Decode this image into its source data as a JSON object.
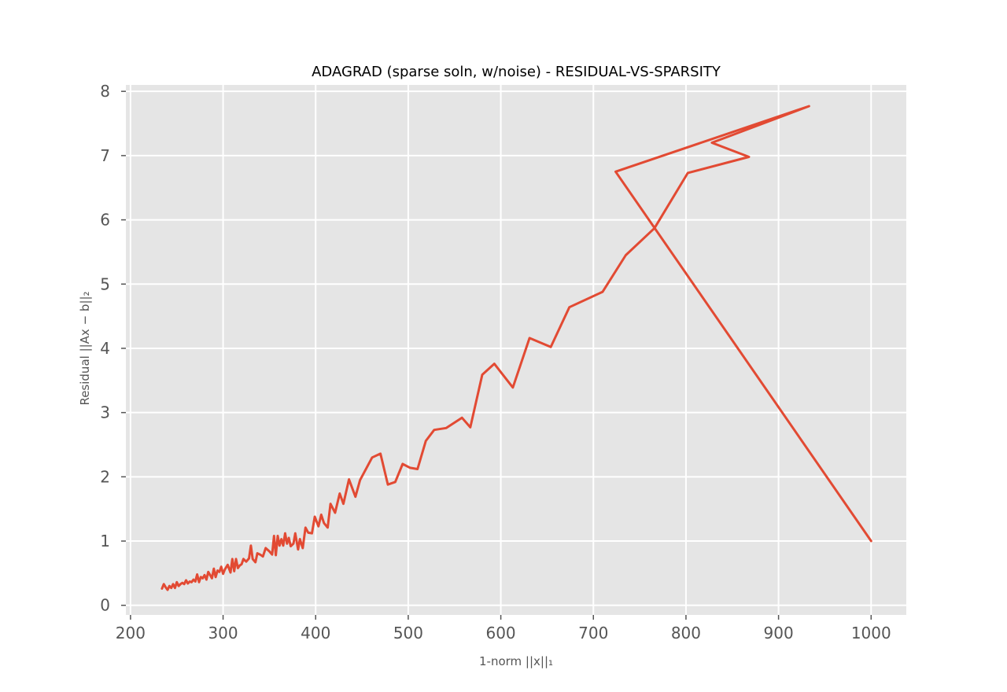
{
  "chart_data": {
    "type": "line",
    "title": "ADAGRAD (sparse soln, w/noise) - RESIDUAL-VS-SPARSITY",
    "xlabel": "1-norm ||x||₁",
    "ylabel": "Residual ||Ax − b||₂",
    "xlim": [
      195,
      1038
    ],
    "ylim": [
      -0.15,
      8.1
    ],
    "xticks": [
      200,
      300,
      400,
      500,
      600,
      700,
      800,
      900,
      1000
    ],
    "yticks": [
      0,
      1,
      2,
      3,
      4,
      5,
      6,
      7,
      8
    ],
    "grid": true,
    "style": "ggplot",
    "series": [
      {
        "color": "#E24A33",
        "x": [
          1000,
          724,
          933,
          828,
          868,
          802,
          766,
          735,
          710,
          674,
          654,
          631,
          613,
          593,
          580,
          567,
          558,
          541,
          528,
          519,
          510,
          502,
          494,
          486,
          478,
          470,
          461,
          448,
          443,
          436,
          430,
          426,
          421,
          416,
          413,
          409,
          406,
          403,
          399,
          396,
          392,
          389,
          386,
          383,
          381,
          378,
          376,
          373,
          371,
          369,
          367,
          365,
          363,
          361,
          359,
          357,
          355,
          353,
          350,
          346,
          343,
          340,
          337,
          335,
          332,
          330,
          328,
          325,
          322,
          320,
          318,
          316,
          314,
          312,
          310,
          308,
          305,
          302,
          300,
          298,
          296,
          294,
          292,
          290,
          288,
          286,
          284,
          282,
          280,
          278,
          276,
          274,
          272,
          270,
          268,
          266,
          264,
          262,
          260,
          258,
          256,
          254,
          252,
          250,
          248,
          246,
          244,
          242,
          240,
          238,
          236,
          234
        ],
        "y": [
          1.0,
          6.75,
          7.77,
          7.2,
          6.98,
          6.73,
          5.87,
          5.45,
          4.88,
          4.64,
          4.02,
          4.16,
          3.39,
          3.76,
          3.59,
          2.77,
          2.92,
          2.76,
          2.73,
          2.56,
          2.12,
          2.14,
          2.2,
          1.92,
          1.88,
          2.36,
          2.3,
          1.95,
          1.69,
          1.96,
          1.58,
          1.74,
          1.44,
          1.58,
          1.21,
          1.28,
          1.41,
          1.23,
          1.38,
          1.12,
          1.13,
          1.21,
          0.89,
          1.03,
          0.87,
          1.12,
          0.96,
          0.92,
          1.05,
          0.96,
          1.12,
          0.93,
          1.03,
          0.93,
          1.08,
          0.78,
          1.08,
          0.79,
          0.84,
          0.89,
          0.76,
          0.79,
          0.81,
          0.67,
          0.72,
          0.93,
          0.73,
          0.68,
          0.72,
          0.64,
          0.62,
          0.58,
          0.72,
          0.53,
          0.72,
          0.51,
          0.63,
          0.56,
          0.49,
          0.6,
          0.52,
          0.54,
          0.44,
          0.57,
          0.42,
          0.47,
          0.52,
          0.4,
          0.47,
          0.42,
          0.44,
          0.36,
          0.48,
          0.37,
          0.4,
          0.36,
          0.37,
          0.34,
          0.39,
          0.33,
          0.35,
          0.33,
          0.3,
          0.36,
          0.27,
          0.33,
          0.27,
          0.3,
          0.24,
          0.28,
          0.33,
          0.26
        ]
      }
    ]
  }
}
